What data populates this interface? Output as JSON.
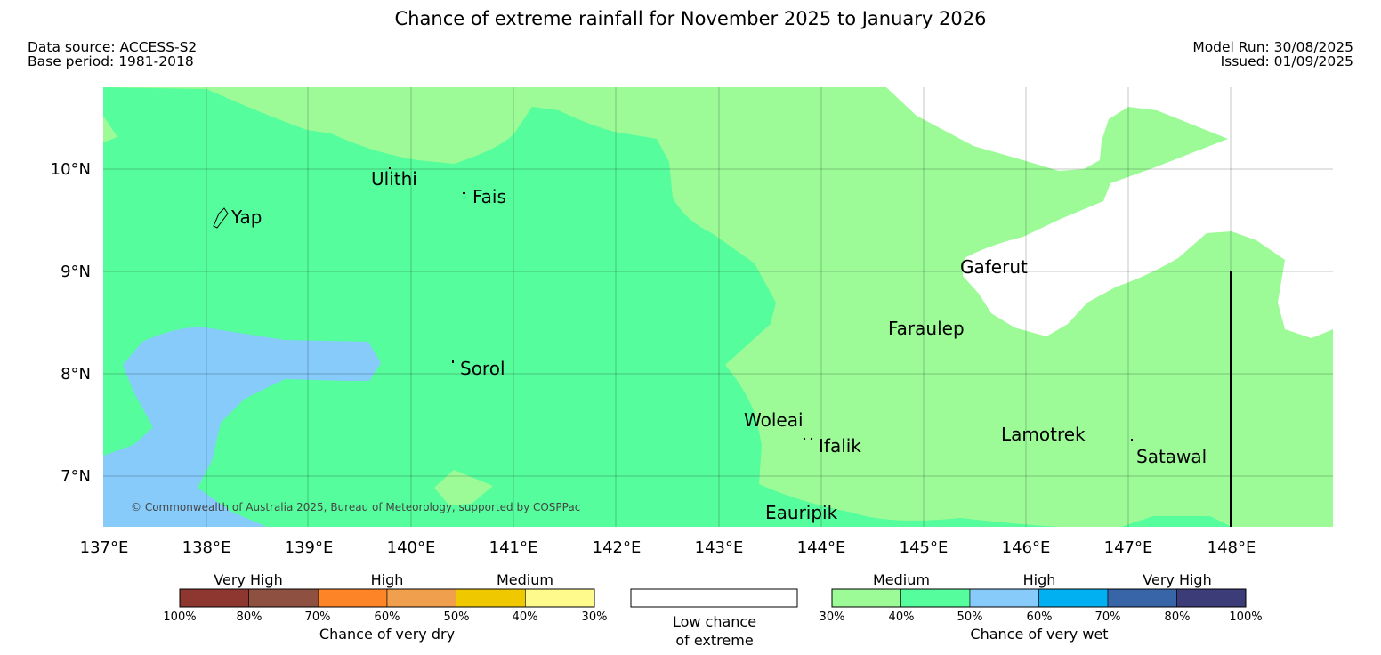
{
  "title": "Chance of extreme rainfall for November 2025 to January 2026",
  "meta": {
    "data_source": "Data source: ACCESS-S2",
    "base_period": "Base period: 1981-2018",
    "model_run": "Model Run: 30/08/2025",
    "issued": "Issued: 01/09/2025"
  },
  "map": {
    "copyright": "© Commonwealth of Australia 2025, Bureau of Meteorology, supported by COSPPac",
    "lon_labels": [
      "137°E",
      "138°E",
      "139°E",
      "140°E",
      "141°E",
      "142°E",
      "143°E",
      "144°E",
      "145°E",
      "146°E",
      "147°E",
      "148°E"
    ],
    "lat_labels": [
      "10°N",
      "9°N",
      "8°N",
      "7°N"
    ],
    "places": [
      "Yap",
      "Ulithi",
      "Fais",
      "Sorol",
      "Gaferut",
      "Faraulep",
      "Woleai",
      "Ifalik",
      "Lamotrek",
      "Satawal",
      "Eauripik"
    ],
    "category_colors": {
      "wet_medium_30_40": "#9cfb97",
      "wet_medium_40_50": "#55fd9c",
      "wet_high_50_60": "#87cbfb",
      "low_chance": "#ffffff"
    }
  },
  "legend": {
    "dry": {
      "groups": [
        "Very High",
        "High",
        "Medium"
      ],
      "colors": [
        "#8e3630",
        "#8e5040",
        "#fe8428",
        "#f0a04d",
        "#f0c800",
        "#fffa8c"
      ],
      "ticks": [
        "100%",
        "80%",
        "70%",
        "60%",
        "50%",
        "40%",
        "30%"
      ],
      "label": "Chance of very dry"
    },
    "low": {
      "line1": "Low chance",
      "line2": "of extreme"
    },
    "wet": {
      "groups": [
        "Medium",
        "High",
        "Very High"
      ],
      "colors": [
        "#9cfb97",
        "#55fd9c",
        "#87cbfb",
        "#00b0f0",
        "#3864a8",
        "#3c3c78"
      ],
      "ticks": [
        "30%",
        "40%",
        "50%",
        "60%",
        "70%",
        "80%",
        "100%"
      ],
      "label": "Chance of very wet"
    }
  }
}
